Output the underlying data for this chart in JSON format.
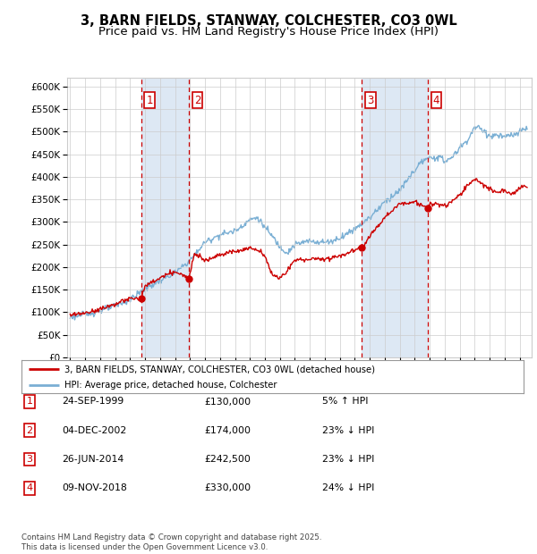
{
  "title": "3, BARN FIELDS, STANWAY, COLCHESTER, CO3 0WL",
  "subtitle": "Price paid vs. HM Land Registry's House Price Index (HPI)",
  "ylim": [
    0,
    620000
  ],
  "yticks": [
    0,
    50000,
    100000,
    150000,
    200000,
    250000,
    300000,
    350000,
    400000,
    450000,
    500000,
    550000,
    600000
  ],
  "sales": [
    {
      "date_num": 1999.73,
      "price": 130000,
      "label": "1"
    },
    {
      "date_num": 2002.92,
      "price": 174000,
      "label": "2"
    },
    {
      "date_num": 2014.48,
      "price": 242500,
      "label": "3"
    },
    {
      "date_num": 2018.86,
      "price": 330000,
      "label": "4"
    }
  ],
  "table_rows": [
    {
      "label": "1",
      "date": "24-SEP-1999",
      "price": "£130,000",
      "hpi": "5% ↑ HPI"
    },
    {
      "label": "2",
      "date": "04-DEC-2002",
      "price": "£174,000",
      "hpi": "23% ↓ HPI"
    },
    {
      "label": "3",
      "date": "26-JUN-2014",
      "price": "£242,500",
      "hpi": "23% ↓ HPI"
    },
    {
      "label": "4",
      "date": "09-NOV-2018",
      "price": "£330,000",
      "hpi": "24% ↓ HPI"
    }
  ],
  "legend_line1": "3, BARN FIELDS, STANWAY, COLCHESTER, CO3 0WL (detached house)",
  "legend_line2": "HPI: Average price, detached house, Colchester",
  "footnote": "Contains HM Land Registry data © Crown copyright and database right 2025.\nThis data is licensed under the Open Government Licence v3.0.",
  "sale_color": "#cc0000",
  "hpi_color": "#7aafd4",
  "shade_color": "#dde8f4",
  "grid_color": "#cccccc",
  "background_color": "#ffffff",
  "title_fontsize": 10.5,
  "subtitle_fontsize": 9.5,
  "hpi_kx": [
    1995,
    1996,
    1997,
    1998,
    1999,
    2000,
    2001,
    2002,
    2003,
    2004,
    2005,
    2006,
    2007,
    2007.5,
    2008,
    2008.5,
    2009,
    2009.5,
    2010,
    2011,
    2012,
    2012.5,
    2013,
    2014,
    2015,
    2016,
    2017,
    2018,
    2018.5,
    2019,
    2019.5,
    2020,
    2020.5,
    2021,
    2021.5,
    2022,
    2022.5,
    2023,
    2023.5,
    2024,
    2024.5,
    2025,
    2025.5
  ],
  "hpi_ky": [
    90000,
    95000,
    103000,
    114000,
    128000,
    152000,
    170000,
    187000,
    215000,
    255000,
    272000,
    280000,
    305000,
    310000,
    288000,
    268000,
    245000,
    232000,
    250000,
    258000,
    255000,
    258000,
    265000,
    285000,
    310000,
    345000,
    370000,
    415000,
    435000,
    440000,
    445000,
    435000,
    442000,
    465000,
    480000,
    510000,
    505000,
    490000,
    492000,
    488000,
    492000,
    498000,
    510000
  ],
  "red_kx": [
    1995,
    1996,
    1997,
    1998,
    1999,
    1999.73,
    2000,
    2001,
    2002,
    2002.92,
    2003,
    2003.3,
    2003.5,
    2004,
    2005,
    2006,
    2007,
    2007.5,
    2008,
    2008.5,
    2009,
    2009.5,
    2010,
    2011,
    2012,
    2013,
    2014,
    2014.48,
    2015,
    2016,
    2017,
    2018,
    2018.86,
    2019,
    2019.5,
    2020,
    2020.5,
    2021,
    2021.5,
    2022,
    2022.5,
    2023,
    2023.5,
    2024,
    2024.5,
    2025,
    2025.5
  ],
  "red_ky": [
    93000,
    98000,
    107000,
    118000,
    130000,
    130000,
    157000,
    176000,
    190000,
    174000,
    185000,
    235000,
    228000,
    215000,
    228000,
    235000,
    242000,
    238000,
    226000,
    182000,
    175000,
    193000,
    215000,
    218000,
    218000,
    225000,
    238000,
    242500,
    270000,
    310000,
    340000,
    345000,
    330000,
    340000,
    340000,
    335000,
    345000,
    360000,
    380000,
    395000,
    385000,
    372000,
    365000,
    370000,
    362000,
    375000,
    380000
  ]
}
